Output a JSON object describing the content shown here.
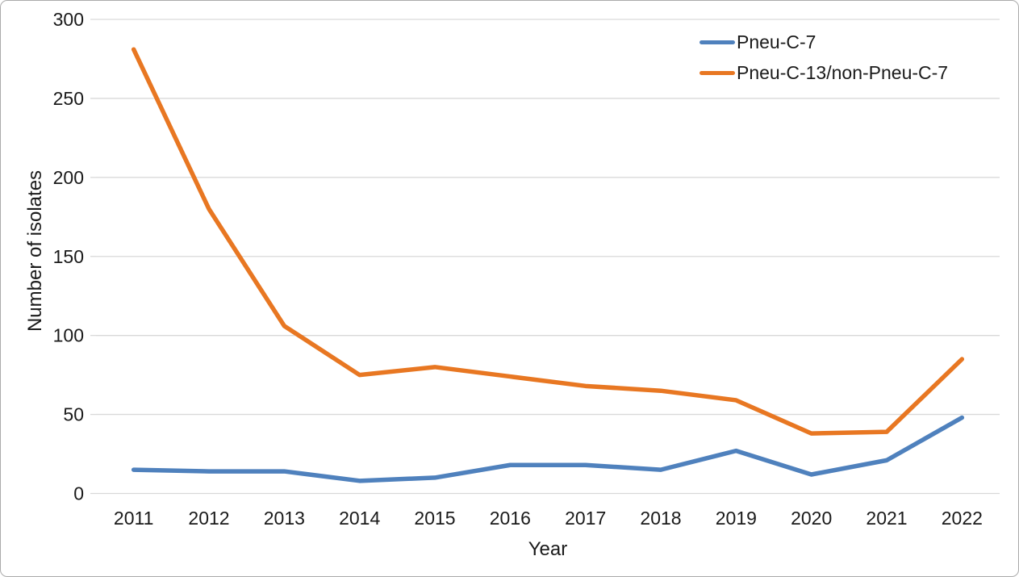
{
  "chart_data": {
    "type": "line",
    "title": "",
    "xlabel": "Year",
    "ylabel": "Number of isolates",
    "categories": [
      "2011",
      "2012",
      "2013",
      "2014",
      "2015",
      "2016",
      "2017",
      "2018",
      "2019",
      "2020",
      "2021",
      "2022"
    ],
    "series": [
      {
        "name": "Pneu-C-7",
        "color": "#4F81BD",
        "values": [
          15,
          14,
          14,
          8,
          10,
          18,
          18,
          15,
          27,
          12,
          21,
          48
        ]
      },
      {
        "name": "Pneu-C-13/non-Pneu-C-7",
        "color": "#E87722",
        "values": [
          281,
          180,
          106,
          75,
          80,
          74,
          68,
          65,
          59,
          38,
          39,
          85
        ]
      }
    ],
    "ylim": [
      0,
      300
    ],
    "y_ticks": [
      0,
      50,
      100,
      150,
      200,
      250,
      300
    ],
    "grid": "horizontal",
    "legend_position": "top-right",
    "gridline_color": "#D9D9D9",
    "axis_line_color": "#D9D9D9",
    "text_color": "#1a1a1a",
    "background_color": "#FFFFFF",
    "border_color": "#ABABAB"
  }
}
